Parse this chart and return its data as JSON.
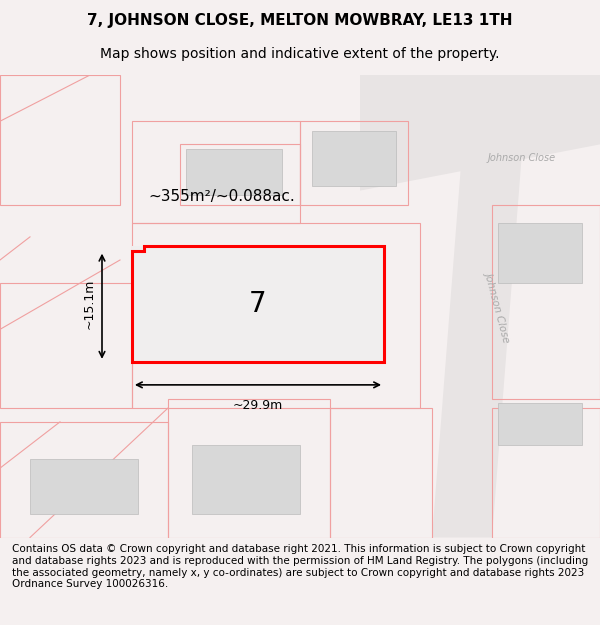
{
  "title_line1": "7, JOHNSON CLOSE, MELTON MOWBRAY, LE13 1TH",
  "title_line2": "Map shows position and indicative extent of the property.",
  "footer_text": "Contains OS data © Crown copyright and database right 2021. This information is subject to Crown copyright and database rights 2023 and is reproduced with the permission of HM Land Registry. The polygons (including the associated geometry, namely x, y co-ordinates) are subject to Crown copyright and database rights 2023 Ordnance Survey 100026316.",
  "area_label": "~355m²/~0.088ac.",
  "width_label": "~29.9m",
  "height_label": "~15.1m",
  "plot_number": "7",
  "bg_color": "#f5f0f0",
  "map_bg": "#ffffff",
  "highlight_color": "#ff0000",
  "building_fill": "#d8d8d8",
  "road_fill": "#e8e0e0",
  "parcel_stroke": "#f5a0a0",
  "road_label_color": "#aaaaaa",
  "title_fontsize": 11,
  "subtitle_fontsize": 10,
  "footer_fontsize": 7.5
}
